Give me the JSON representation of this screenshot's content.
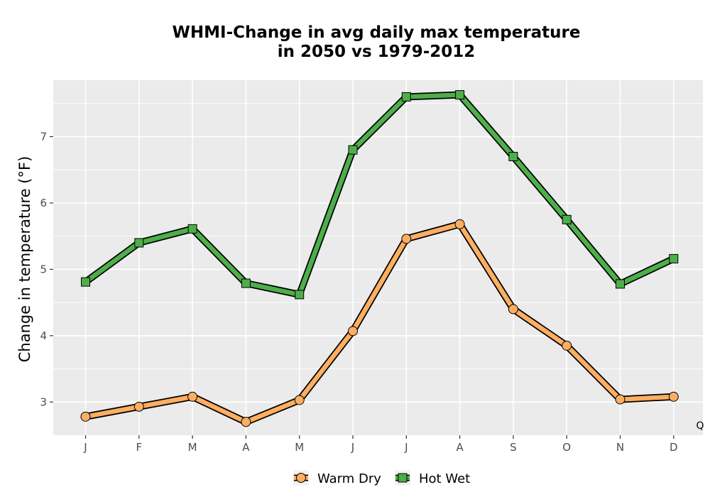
{
  "chart_data": {
    "type": "line",
    "title_lines": [
      "WHMI-Change in avg daily max temperature",
      "in 2050 vs 1979-2012"
    ],
    "xlabel": "",
    "ylabel": "Change in temperature (°F)",
    "categories": [
      "J",
      "F",
      "M",
      "A",
      "M",
      "J",
      "J",
      "A",
      "S",
      "O",
      "N",
      "D"
    ],
    "ylim": [
      2.5,
      7.85
    ],
    "yticks": [
      3,
      4,
      5,
      6,
      7
    ],
    "grid": true,
    "legend_position": "bottom",
    "corner_note": "Q",
    "series": [
      {
        "name": "Warm Dry",
        "marker": "circle",
        "color": "#FDAE61",
        "values": [
          2.78,
          2.93,
          3.08,
          2.7,
          3.03,
          4.07,
          5.46,
          5.68,
          4.4,
          3.85,
          3.04,
          3.08
        ]
      },
      {
        "name": "Hot Wet",
        "marker": "square",
        "color": "#4DAF4A",
        "values": [
          4.81,
          5.4,
          5.61,
          4.79,
          4.62,
          6.8,
          7.6,
          7.63,
          6.7,
          5.75,
          4.78,
          5.16
        ]
      }
    ]
  }
}
